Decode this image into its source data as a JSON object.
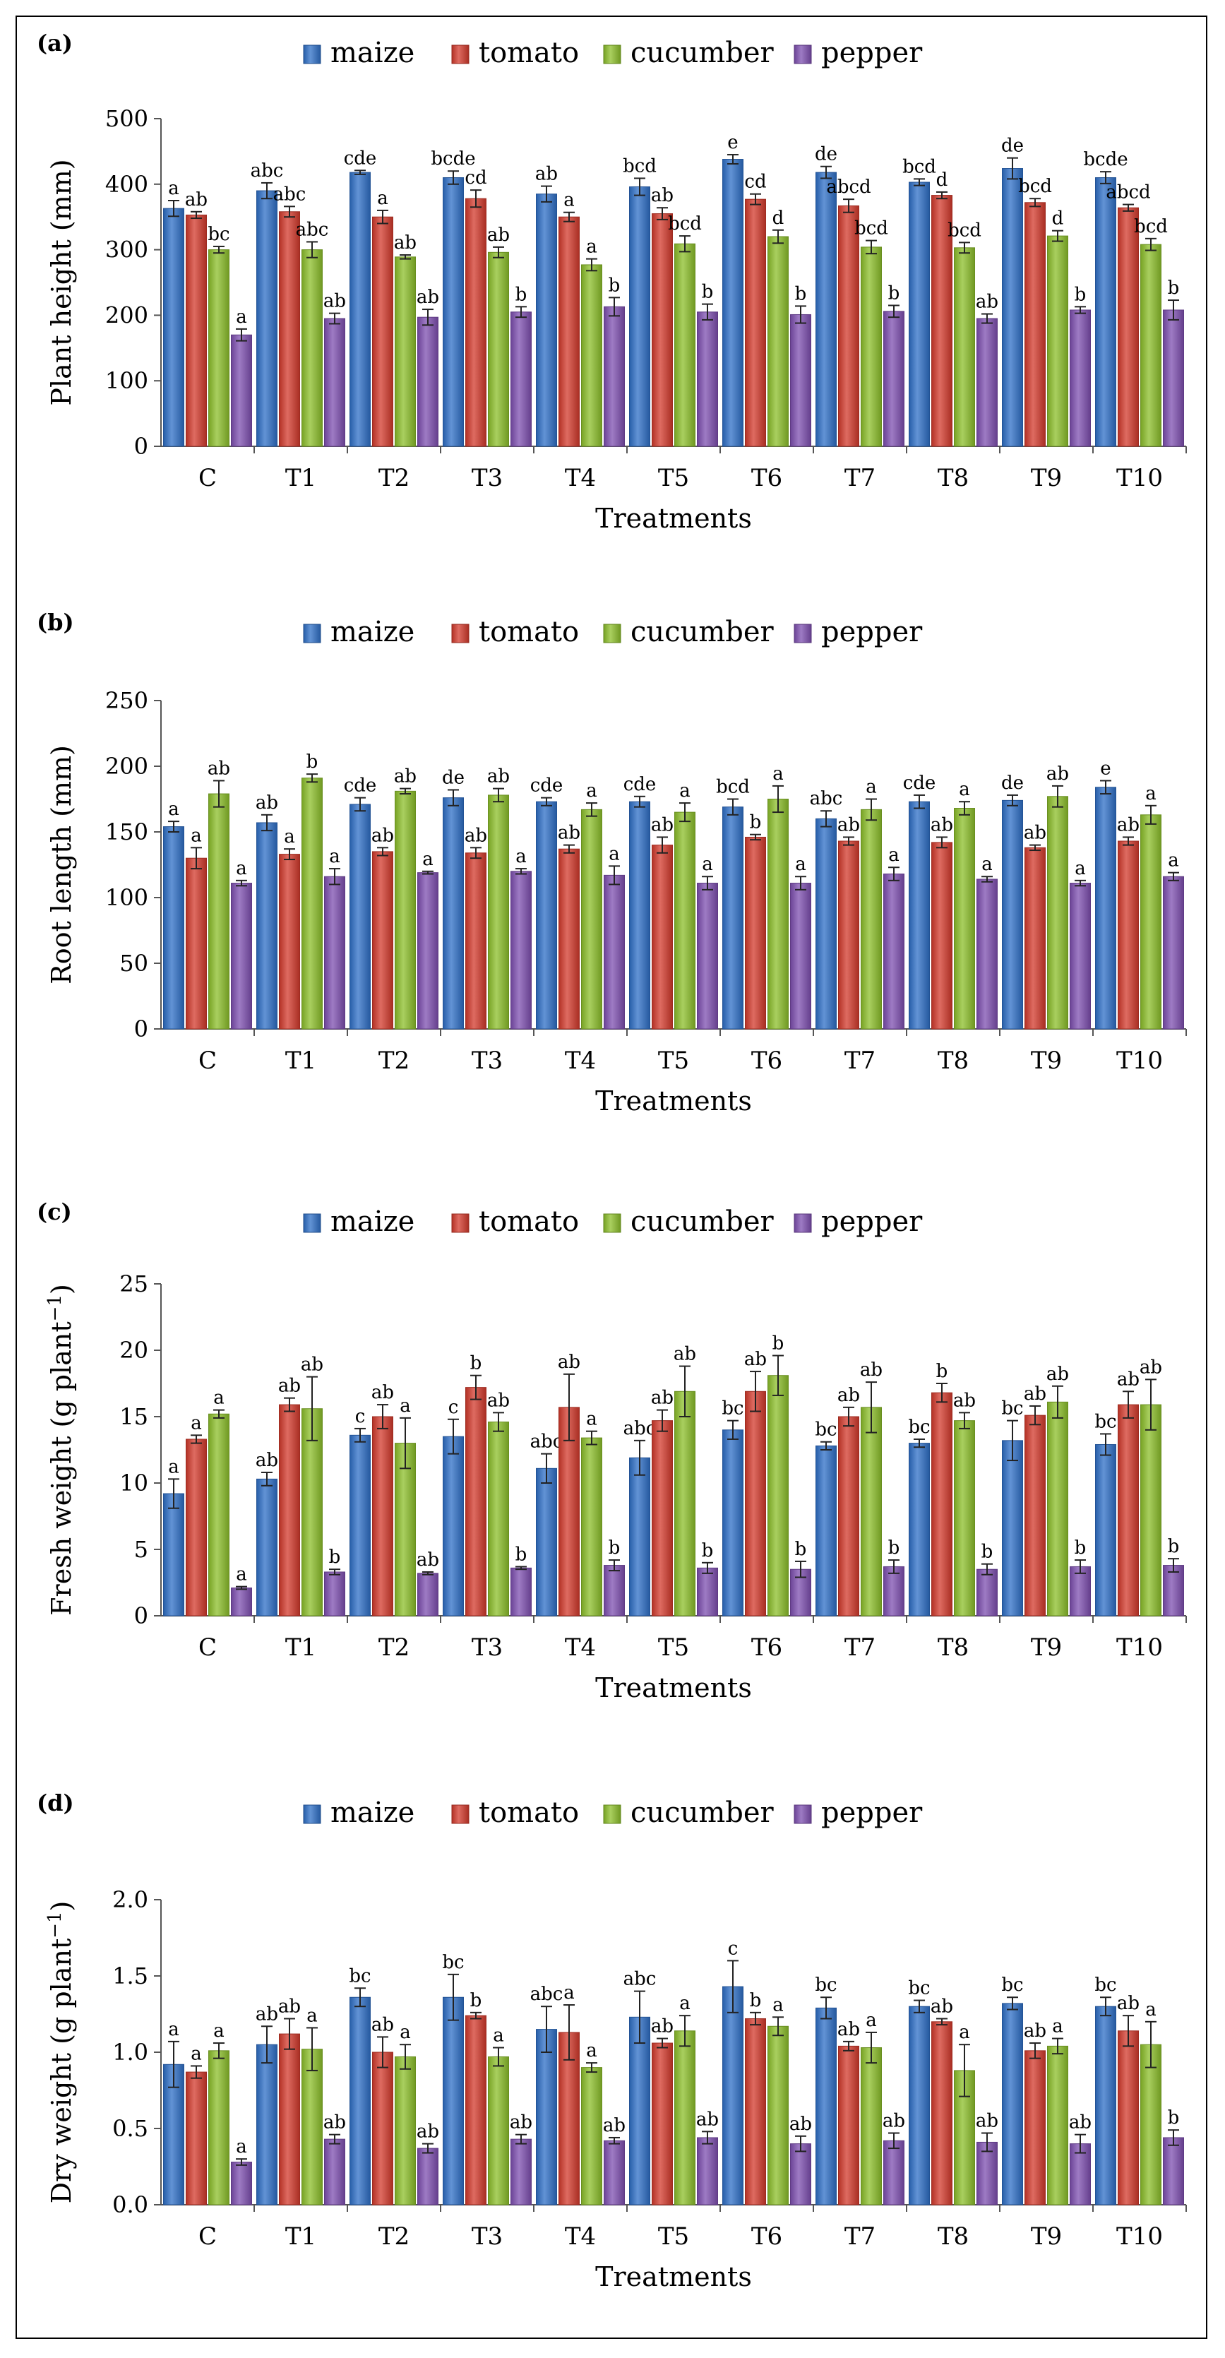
{
  "colors": {
    "maize": "#2e6fc7",
    "tomato": "#d33a2c",
    "cucumber": "#8cbf2a",
    "pepper": "#7e4fb0",
    "axis": "#555555",
    "text": "#000000"
  },
  "chart_data": [
    {
      "type": "bar",
      "panel_label": "(a)",
      "ylabel": "Plant  height (mm)",
      "xlabel": "Treatments",
      "ylim": [
        0,
        500
      ],
      "yticks": [
        "0",
        "100",
        "200",
        "300",
        "400",
        "500"
      ],
      "ytick_values": [
        0,
        100,
        200,
        300,
        400,
        500
      ],
      "categories": [
        "C",
        "T1",
        "T2",
        "T3",
        "T4",
        "T5",
        "T6",
        "T7",
        "T8",
        "T9",
        "T10"
      ],
      "legend": [
        "maize",
        "tomato",
        "cucumber",
        "pepper"
      ],
      "series": [
        {
          "name": "maize",
          "values": [
            363,
            390,
            418,
            410,
            385,
            396,
            438,
            418,
            403,
            424,
            410
          ],
          "errors": [
            12,
            12,
            3,
            10,
            12,
            13,
            7,
            9,
            5,
            16,
            9
          ],
          "letters": [
            "a",
            "abc",
            "cde",
            "bcde",
            "ab",
            "bcd",
            "e",
            "de",
            "bcd",
            "de",
            "bcde"
          ]
        },
        {
          "name": "tomato",
          "values": [
            353,
            358,
            350,
            378,
            350,
            355,
            377,
            367,
            383,
            372,
            364
          ],
          "errors": [
            5,
            8,
            10,
            13,
            7,
            9,
            8,
            10,
            5,
            6,
            5
          ],
          "letters": [
            "ab",
            "abc",
            "a",
            "cd",
            "a",
            "ab",
            "cd",
            "abcd",
            "d",
            "bcd",
            "abcd"
          ]
        },
        {
          "name": "cucumber",
          "values": [
            300,
            300,
            289,
            296,
            277,
            309,
            320,
            304,
            303,
            321,
            308
          ],
          "errors": [
            5,
            12,
            3,
            8,
            9,
            12,
            10,
            10,
            8,
            8,
            9
          ],
          "letters": [
            "bc",
            "abc",
            "ab",
            "ab",
            "a",
            "bcd",
            "d",
            "bcd",
            "bcd",
            "d",
            "bcd"
          ]
        },
        {
          "name": "pepper",
          "values": [
            170,
            195,
            197,
            205,
            213,
            205,
            201,
            206,
            195,
            208,
            208
          ],
          "errors": [
            9,
            8,
            12,
            8,
            14,
            12,
            13,
            9,
            7,
            5,
            15
          ],
          "letters": [
            "a",
            "ab",
            "ab",
            "b",
            "b",
            "b",
            "b",
            "b",
            "ab",
            "b",
            "b"
          ]
        }
      ]
    },
    {
      "type": "bar",
      "panel_label": "(b)",
      "ylabel": "Root length (mm)",
      "xlabel": "Treatments",
      "ylim": [
        0,
        250
      ],
      "yticks": [
        "0",
        "50",
        "100",
        "150",
        "200",
        "250"
      ],
      "ytick_values": [
        0,
        50,
        100,
        150,
        200,
        250
      ],
      "categories": [
        "C",
        "T1",
        "T2",
        "T3",
        "T4",
        "T5",
        "T6",
        "T7",
        "T8",
        "T9",
        "T10"
      ],
      "legend": [
        "maize",
        "tomato",
        "cucumber",
        "pepper"
      ],
      "series": [
        {
          "name": "maize",
          "values": [
            154,
            157,
            171,
            176,
            173,
            173,
            169,
            160,
            173,
            174,
            184
          ],
          "errors": [
            4,
            6,
            5,
            6,
            3,
            4,
            6,
            6,
            5,
            4,
            5
          ],
          "letters": [
            "a",
            "ab",
            "cde",
            "de",
            "cde",
            "cde",
            "bcd",
            "abc",
            "cde",
            "de",
            "e"
          ]
        },
        {
          "name": "tomato",
          "values": [
            130,
            133,
            135,
            134,
            137,
            140,
            146,
            143,
            142,
            138,
            143
          ],
          "errors": [
            8,
            4,
            3,
            4,
            3,
            6,
            2,
            3,
            4,
            2,
            3
          ],
          "letters": [
            "a",
            "a",
            "ab",
            "ab",
            "ab",
            "ab",
            "b",
            "ab",
            "ab",
            "ab",
            "ab"
          ]
        },
        {
          "name": "cucumber",
          "values": [
            179,
            191,
            181,
            178,
            167,
            165,
            175,
            167,
            168,
            177,
            163
          ],
          "errors": [
            10,
            3,
            2,
            5,
            5,
            7,
            10,
            8,
            5,
            8,
            7
          ],
          "letters": [
            "ab",
            "b",
            "ab",
            "ab",
            "a",
            "a",
            "a",
            "a",
            "a",
            "ab",
            "a"
          ]
        },
        {
          "name": "pepper",
          "values": [
            111,
            116,
            119,
            120,
            117,
            111,
            111,
            118,
            114,
            111,
            116
          ],
          "errors": [
            2,
            6,
            1,
            2,
            7,
            5,
            5,
            5,
            2,
            2,
            3
          ],
          "letters": [
            "a",
            "a",
            "a",
            "a",
            "a",
            "a",
            "a",
            "a",
            "a",
            "a",
            "a"
          ]
        }
      ]
    },
    {
      "type": "bar",
      "panel_label": "(c)",
      "ylabel": "Fresh weight (g plant",
      "ylabel_sup": "−1",
      "ylabel_end": ")",
      "xlabel": "Treatments",
      "ylim": [
        0,
        25
      ],
      "yticks": [
        "0",
        "5",
        "10",
        "15",
        "20",
        "25"
      ],
      "ytick_values": [
        0,
        5,
        10,
        15,
        20,
        25
      ],
      "categories": [
        "C",
        "T1",
        "T2",
        "T3",
        "T4",
        "T5",
        "T6",
        "T7",
        "T8",
        "T9",
        "T10"
      ],
      "legend": [
        "maize",
        "tomato",
        "cucumber",
        "pepper"
      ],
      "series": [
        {
          "name": "maize",
          "values": [
            9.2,
            10.3,
            13.6,
            13.5,
            11.1,
            11.9,
            14.0,
            12.8,
            13.0,
            13.2,
            12.9
          ],
          "errors": [
            1.1,
            0.5,
            0.5,
            1.3,
            1.1,
            1.3,
            0.7,
            0.3,
            0.3,
            1.5,
            0.8
          ],
          "letters": [
            "a",
            "ab",
            "c",
            "c",
            "abc",
            "abc",
            "bc",
            "bc",
            "bc",
            "bc",
            "bc"
          ]
        },
        {
          "name": "tomato",
          "values": [
            13.3,
            15.9,
            15.0,
            17.2,
            15.7,
            14.7,
            16.9,
            15.0,
            16.8,
            15.1,
            15.9
          ],
          "errors": [
            0.3,
            0.5,
            0.9,
            0.9,
            2.5,
            0.8,
            1.5,
            0.7,
            0.7,
            0.7,
            1.0
          ],
          "letters": [
            "a",
            "ab",
            "ab",
            "b",
            "ab",
            "ab",
            "ab",
            "ab",
            "b",
            "ab",
            "ab"
          ]
        },
        {
          "name": "cucumber",
          "values": [
            15.2,
            15.6,
            13.0,
            14.6,
            13.4,
            16.9,
            18.1,
            15.7,
            14.7,
            16.1,
            15.9
          ],
          "errors": [
            0.3,
            2.4,
            1.9,
            0.7,
            0.5,
            1.9,
            1.5,
            1.9,
            0.6,
            1.2,
            1.9
          ],
          "letters": [
            "a",
            "ab",
            "a",
            "ab",
            "a",
            "ab",
            "b",
            "ab",
            "ab",
            "ab",
            "ab"
          ]
        },
        {
          "name": "pepper",
          "values": [
            2.1,
            3.3,
            3.2,
            3.6,
            3.8,
            3.6,
            3.5,
            3.7,
            3.5,
            3.7,
            3.8
          ],
          "errors": [
            0.1,
            0.2,
            0.1,
            0.1,
            0.4,
            0.4,
            0.6,
            0.5,
            0.4,
            0.5,
            0.5
          ],
          "letters": [
            "a",
            "b",
            "ab",
            "b",
            "b",
            "b",
            "b",
            "b",
            "b",
            "b",
            "b"
          ]
        }
      ]
    },
    {
      "type": "bar",
      "panel_label": "(d)",
      "ylabel": "Dry weight (g plant",
      "ylabel_sup": "−1",
      "ylabel_end": ")",
      "xlabel": "Treatments",
      "ylim": [
        0,
        2.0
      ],
      "yticks": [
        "0.0",
        "0.5",
        "1.0",
        "1.5",
        "2.0"
      ],
      "ytick_values": [
        0,
        0.5,
        1.0,
        1.5,
        2.0
      ],
      "categories": [
        "C",
        "T1",
        "T2",
        "T3",
        "T4",
        "T5",
        "T6",
        "T7",
        "T8",
        "T9",
        "T10"
      ],
      "legend": [
        "maize",
        "tomato",
        "cucumber",
        "pepper"
      ],
      "series": [
        {
          "name": "maize",
          "values": [
            0.92,
            1.05,
            1.36,
            1.36,
            1.15,
            1.23,
            1.43,
            1.29,
            1.3,
            1.32,
            1.3
          ],
          "errors": [
            0.15,
            0.12,
            0.06,
            0.15,
            0.15,
            0.17,
            0.17,
            0.07,
            0.04,
            0.04,
            0.06
          ],
          "letters": [
            "a",
            "ab",
            "bc",
            "bc",
            "abc",
            "abc",
            "c",
            "bc",
            "bc",
            "bc",
            "bc"
          ]
        },
        {
          "name": "tomato",
          "values": [
            0.87,
            1.12,
            1.0,
            1.24,
            1.13,
            1.06,
            1.22,
            1.04,
            1.2,
            1.01,
            1.14
          ],
          "errors": [
            0.04,
            0.1,
            0.1,
            0.02,
            0.18,
            0.03,
            0.04,
            0.03,
            0.02,
            0.05,
            0.1
          ],
          "letters": [
            "a",
            "ab",
            "ab",
            "b",
            "a",
            "ab",
            "b",
            "ab",
            "ab",
            "ab",
            "ab"
          ]
        },
        {
          "name": "cucumber",
          "values": [
            1.01,
            1.02,
            0.97,
            0.97,
            0.9,
            1.14,
            1.17,
            1.03,
            0.88,
            1.04,
            1.05
          ],
          "errors": [
            0.05,
            0.14,
            0.08,
            0.06,
            0.03,
            0.1,
            0.06,
            0.1,
            0.17,
            0.05,
            0.15
          ],
          "letters": [
            "a",
            "a",
            "a",
            "a",
            "a",
            "a",
            "a",
            "a",
            "a",
            "a",
            "a"
          ]
        },
        {
          "name": "pepper",
          "values": [
            0.28,
            0.43,
            0.37,
            0.43,
            0.42,
            0.44,
            0.4,
            0.42,
            0.41,
            0.4,
            0.44
          ],
          "errors": [
            0.02,
            0.03,
            0.03,
            0.03,
            0.02,
            0.04,
            0.05,
            0.05,
            0.06,
            0.06,
            0.05
          ],
          "letters": [
            "a",
            "ab",
            "ab",
            "ab",
            "ab",
            "ab",
            "ab",
            "ab",
            "ab",
            "ab",
            "b"
          ]
        }
      ]
    }
  ]
}
